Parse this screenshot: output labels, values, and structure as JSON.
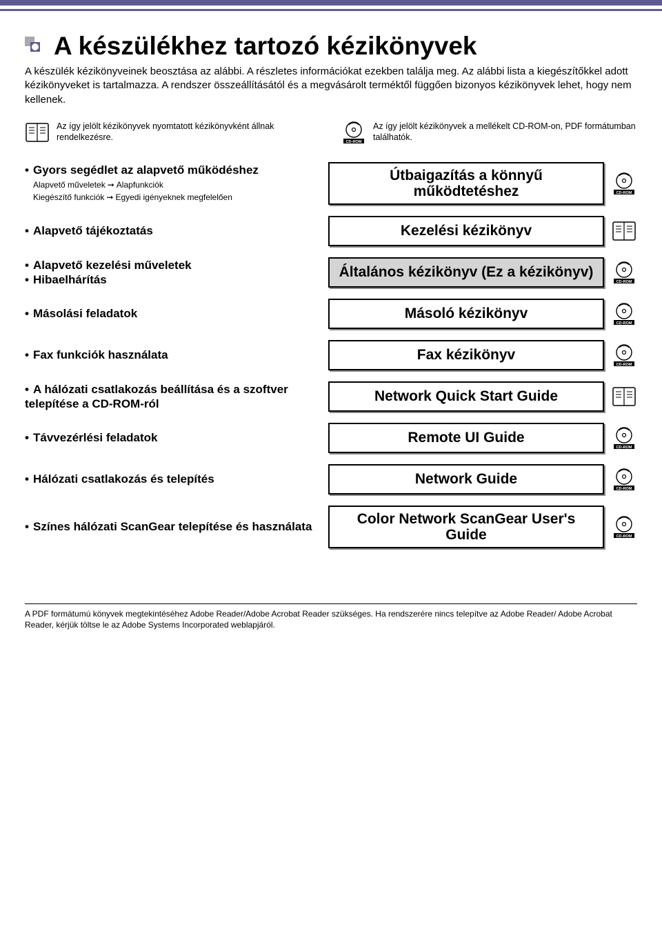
{
  "title": "A készülékhez tartozó kézikönyvek",
  "intro": "A készülék kézikönyveinek beosztása az alábbi. A részletes információkat ezekben találja meg. Az alábbi lista a kiegészítőkkel adott kézikönyveket is tartalmazza. A rendszer összeállításától és a megvásárolt terméktől függően bizonyos kézikönyvek lehet, hogy nem kellenek.",
  "legend": {
    "book": "Az így jelölt kézikönyvek nyomtatott kézikönyvként állnak rendelkezésre.",
    "cd": "Az így jelölt kézikönyvek a mellékelt CD-ROM-on, PDF formátumban találhatók.",
    "cd_label": "CD-ROM"
  },
  "rows": [
    {
      "left_html": true,
      "func": "Gyors segédlet az alapvető működéshez",
      "sub1_a": "Alapvető műveletek",
      "sub1_b": "Alapfunkciók",
      "sub2_a": "Kiegészítő funkciók",
      "sub2_b": "Egyedi igényeknek megfelelően",
      "guide": "Útbaigazítás a könnyű működtetéshez",
      "icon": "cd",
      "shaded": false
    },
    {
      "func": "Alapvető tájékoztatás",
      "guide": "Kezelési kézikönyv",
      "icon": "book",
      "shaded": false
    },
    {
      "func_multi": [
        "Alapvető kezelési műveletek",
        "Hibaelhárítás"
      ],
      "guide": "Általános kézikönyv (Ez a kézikönyv)",
      "icon": "cd",
      "shaded": true
    },
    {
      "func": "Másolási feladatok",
      "guide": "Másoló kézikönyv",
      "icon": "cd",
      "shaded": false
    },
    {
      "func": "Fax funkciók használata",
      "guide": "Fax kézikönyv",
      "icon": "cd",
      "shaded": false
    },
    {
      "func_multi": [
        "A hálózati csatlakozás beállítása és a szoftver telepítése a CD-ROM-ról"
      ],
      "guide": "Network Quick Start Guide",
      "icon": "book",
      "shaded": false
    },
    {
      "func": "Távvezérlési feladatok",
      "guide": "Remote UI Guide",
      "icon": "cd",
      "shaded": false
    },
    {
      "func": "Hálózati csatlakozás és telepítés",
      "guide": "Network Guide",
      "icon": "cd",
      "shaded": false
    },
    {
      "func_multi": [
        "Színes hálózati ScanGear telepítése és használata"
      ],
      "guide": "Color Network ScanGear User's Guide",
      "icon": "cd",
      "shaded": false
    }
  ],
  "footer": "A PDF formátumú könyvek megtekintéséhez Adobe Reader/Adobe Acrobat Reader szükséges. Ha rendszerére nincs telepítve az Adobe Reader/ Adobe Acrobat Reader, kérjük töltse le az Adobe Systems Incorporated weblapjáról.",
  "colors": {
    "accent": "#5f5a8f",
    "shaded": "#d4d4d4"
  }
}
